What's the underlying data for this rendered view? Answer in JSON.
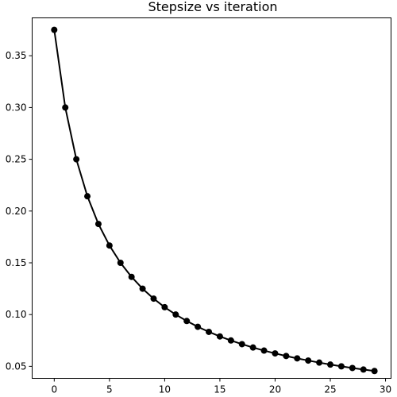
{
  "chart_data": {
    "type": "line",
    "title": "Stepsize vs iteration",
    "xlabel": "",
    "ylabel": "",
    "xlim": [
      -2.0,
      30.5
    ],
    "ylim": [
      0.0384,
      0.3866
    ],
    "xticks": [
      0,
      5,
      10,
      15,
      20,
      25,
      30
    ],
    "yticks": [
      0.05,
      0.1,
      0.15,
      0.2,
      0.25,
      0.3,
      0.35
    ],
    "ytick_labels": [
      "0.05",
      "0.10",
      "0.15",
      "0.20",
      "0.25",
      "0.30",
      "0.35"
    ],
    "grid": false,
    "series": [
      {
        "color": "#000000",
        "marker": "circle",
        "x": [
          0,
          1,
          2,
          3,
          4,
          5,
          6,
          7,
          8,
          9,
          10,
          11,
          12,
          13,
          14,
          15,
          16,
          17,
          18,
          19,
          20,
          21,
          22,
          23,
          24,
          25,
          26,
          27,
          28,
          29
        ],
        "values": [
          0.375,
          0.3,
          0.25,
          0.2143,
          0.1875,
          0.1667,
          0.15,
          0.1364,
          0.125,
          0.1154,
          0.1071,
          0.1,
          0.0938,
          0.0882,
          0.0833,
          0.0789,
          0.075,
          0.0714,
          0.0682,
          0.0652,
          0.0625,
          0.06,
          0.0577,
          0.0556,
          0.0536,
          0.0517,
          0.05,
          0.0484,
          0.0469,
          0.0455
        ]
      }
    ]
  }
}
